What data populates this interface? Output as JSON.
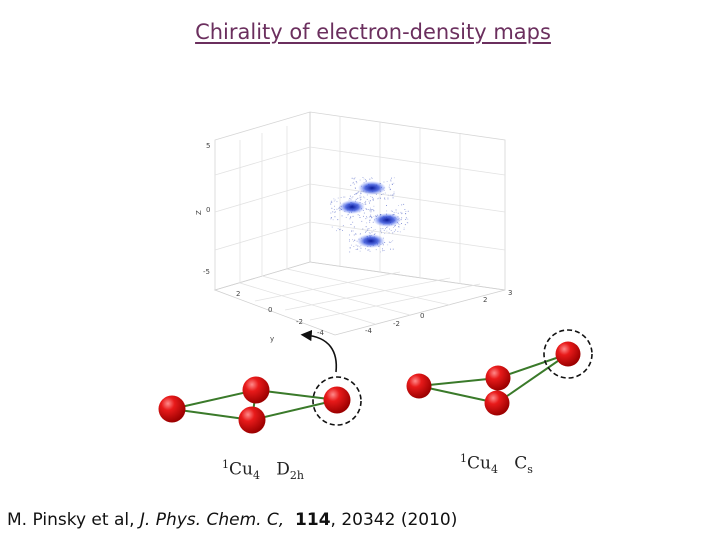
{
  "title": "Chirality of electron-density maps",
  "plot": {
    "z_ticks": [
      "5",
      "0",
      "-5"
    ],
    "z_label": "Z",
    "y_ticks": [
      "2",
      "0",
      "-2",
      "-4"
    ],
    "y_label": "y",
    "x_ticks": [
      "-4",
      "-2",
      "0",
      "2",
      "3"
    ]
  },
  "labels": {
    "left": {
      "sup": "1",
      "base": "Cu",
      "sub": "4",
      "sym_base": "D",
      "sym_sub": "2h"
    },
    "right": {
      "sup": "1",
      "base": "Cu",
      "sub": "4",
      "sym_base": "C",
      "sym_sub": "s"
    }
  },
  "citation": {
    "authors": "M. Pinsky et al, ",
    "journal": "J. Phys. Chem. C,",
    "volume": "114",
    "rest": ", 20342 (2010)"
  },
  "colors": {
    "title": "#6b2f5e",
    "atom": "#e01010",
    "bond": "#3a7a2a",
    "density": "#1530c0"
  }
}
